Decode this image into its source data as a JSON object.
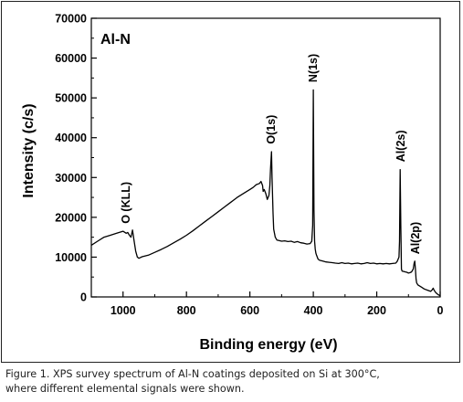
{
  "chart_data": {
    "type": "line",
    "title": "",
    "panel_label": "Al-N",
    "xlabel": "Binding energy (eV)",
    "ylabel": "Intensity (c/s)",
    "xlim": [
      1100,
      0
    ],
    "ylim": [
      0,
      70000
    ],
    "x_reversed": true,
    "grid": false,
    "x_ticks": [
      1000,
      800,
      600,
      400,
      200,
      0
    ],
    "y_ticks": [
      0,
      10000,
      20000,
      30000,
      40000,
      50000,
      60000,
      70000
    ],
    "line_color": "#000000",
    "series": [
      {
        "x": [
          1100,
          1080,
          1060,
          1040,
          1020,
          1000,
          990,
          985,
          980,
          975,
          970,
          965,
          960,
          955,
          950,
          940,
          920,
          900,
          880,
          860,
          840,
          820,
          800,
          780,
          760,
          740,
          720,
          700,
          680,
          660,
          640,
          620,
          600,
          590,
          580,
          570,
          565,
          560,
          558,
          555,
          550,
          545,
          540,
          537,
          535,
          532,
          530,
          527,
          525,
          520,
          515,
          510,
          500,
          490,
          480,
          470,
          460,
          450,
          440,
          430,
          420,
          410,
          405,
          402,
          400,
          398,
          396,
          394,
          392,
          390,
          385,
          380,
          370,
          360,
          350,
          340,
          330,
          320,
          310,
          300,
          290,
          280,
          270,
          260,
          250,
          240,
          230,
          220,
          210,
          200,
          190,
          180,
          170,
          160,
          150,
          140,
          135,
          130,
          128,
          126,
          124,
          122,
          120,
          115,
          110,
          105,
          100,
          95,
          90,
          85,
          82,
          80,
          78,
          76,
          74,
          70,
          60,
          50,
          40,
          30,
          25,
          22,
          20,
          15,
          10,
          5,
          0
        ],
        "y": [
          13000,
          14000,
          15000,
          15500,
          16000,
          16500,
          16000,
          16200,
          15500,
          15000,
          16800,
          14000,
          11500,
          10000,
          9700,
          10100,
          10500,
          11200,
          11900,
          12700,
          13600,
          14500,
          15500,
          16600,
          17800,
          19000,
          20200,
          21400,
          22600,
          23800,
          25000,
          26000,
          27000,
          27500,
          28200,
          28500,
          29000,
          28000,
          26500,
          27000,
          26000,
          24500,
          25500,
          28000,
          32000,
          36500,
          30000,
          21000,
          17000,
          15000,
          14300,
          14200,
          14000,
          14100,
          13900,
          14000,
          13700,
          13900,
          13600,
          13500,
          13300,
          13400,
          14000,
          18000,
          52000,
          22000,
          14000,
          12000,
          11000,
          10500,
          9500,
          9200,
          9000,
          8800,
          8700,
          8600,
          8500,
          8400,
          8600,
          8400,
          8500,
          8300,
          8400,
          8500,
          8300,
          8400,
          8600,
          8400,
          8500,
          8300,
          8400,
          8300,
          8400,
          8300,
          8400,
          8500,
          9000,
          10000,
          14000,
          32000,
          18000,
          7000,
          6500,
          6400,
          6300,
          6200,
          6000,
          6100,
          6300,
          7000,
          8500,
          9000,
          7000,
          4500,
          3500,
          3000,
          2500,
          2000,
          1700,
          1400,
          1800,
          2200,
          1800,
          1200,
          800,
          500,
          300
        ]
      }
    ],
    "annotations": [
      {
        "text": "O (KLL)",
        "x": 990,
        "y": 17500
      },
      {
        "text": "O(1s)",
        "x": 532,
        "y": 37500
      },
      {
        "text": "N(1s)",
        "x": 400,
        "y": 53000
      },
      {
        "text": "Al(2s)",
        "x": 124,
        "y": 33000
      },
      {
        "text": "Al(2p)",
        "x": 78,
        "y": 9800
      }
    ]
  },
  "caption": {
    "line1": "Figure 1. XPS survey spectrum of Al-N coatings deposited on Si at 300°C,",
    "line2": "where different elemental signals were shown."
  }
}
